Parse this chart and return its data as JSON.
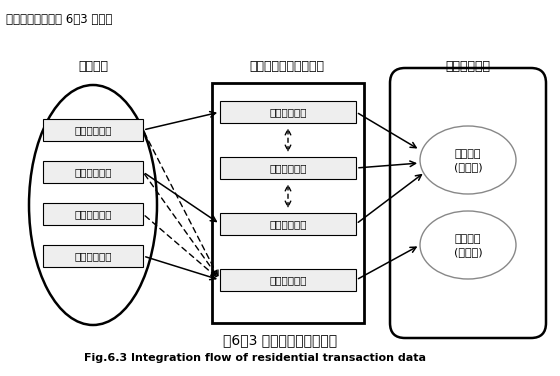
{
  "title_top": "数据整理流程如图 6．3 所示。",
  "col1_title": "原始资料",
  "col2_title": "数据选择、修正与编码",
  "col3_title": "住宅数据整合",
  "col1_items": [
    "住宅评估报告",
    "住宅排牌资料",
    "住宅调查资料",
    "津市电子地图"
  ],
  "col2_items": [
    "住宅评估价格",
    "住宅成交价格",
    "住宅挂牌价格",
    "住宅自然属性"
  ],
  "col3_top_line1": "住宅价格",
  "col3_top_line2": "(应变量)",
  "col3_bot_line1": "自然属性",
  "col3_bot_line2": "(自变量)",
  "caption_cn": "图6．3 住宅数据的整合流程",
  "caption_en": "Fig.6.3 Integration flow of residential transaction data",
  "bg_color": "#ffffff"
}
